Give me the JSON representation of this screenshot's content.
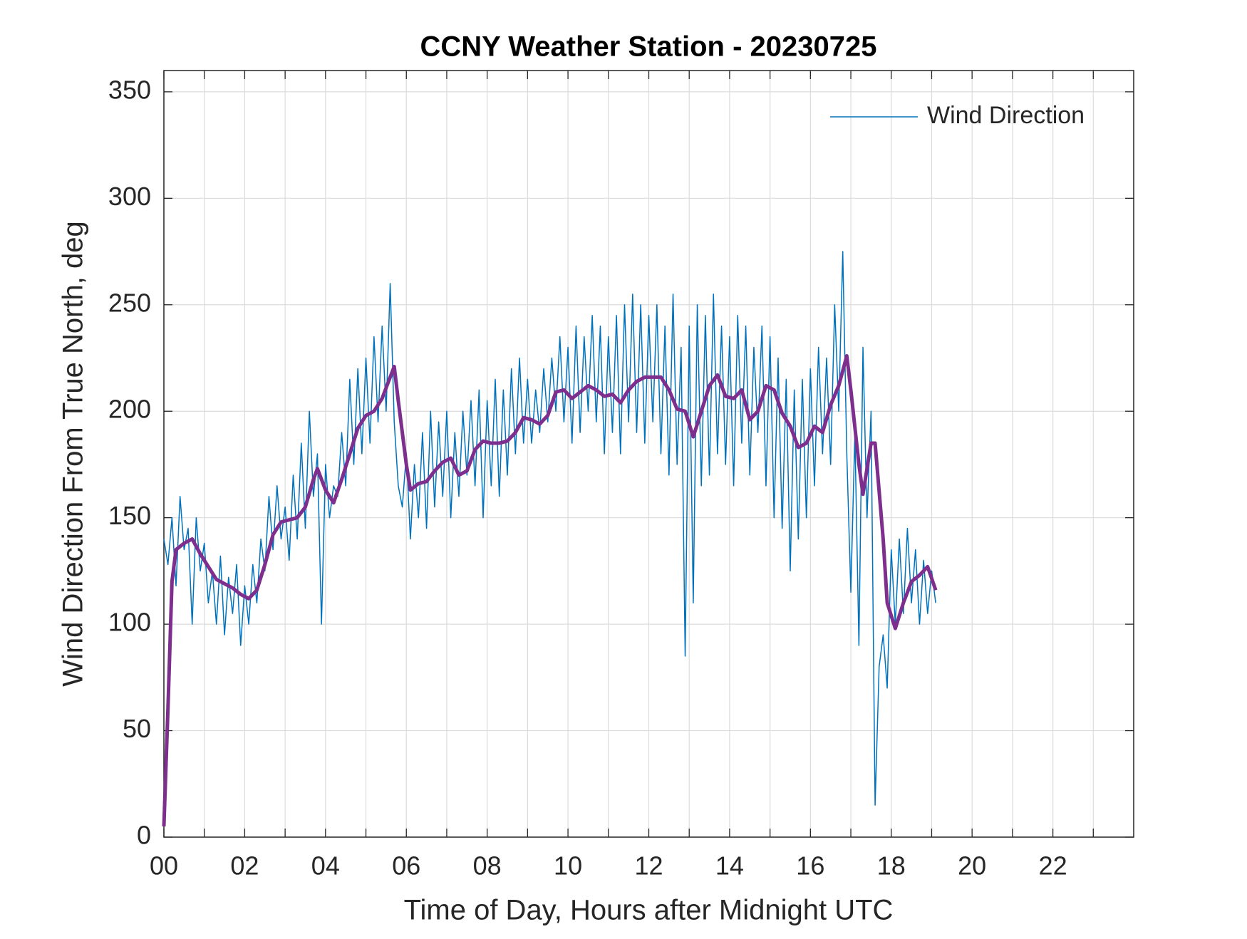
{
  "chart_data": {
    "type": "line",
    "title": "CCNY Weather Station - 20230725",
    "x_label": "Time of Day, Hours after Midnight UTC",
    "y_label": "Wind Direction From True North, deg",
    "xlim": [
      0,
      24
    ],
    "xticks": [
      {
        "value": 0,
        "label": "00"
      },
      {
        "value": 2,
        "label": "02"
      },
      {
        "value": 4,
        "label": "04"
      },
      {
        "value": 6,
        "label": "06"
      },
      {
        "value": 8,
        "label": "08"
      },
      {
        "value": 10,
        "label": "10"
      },
      {
        "value": 12,
        "label": "12"
      },
      {
        "value": 14,
        "label": "14"
      },
      {
        "value": 16,
        "label": "16"
      },
      {
        "value": 18,
        "label": "18"
      },
      {
        "value": 20,
        "label": "20"
      },
      {
        "value": 22,
        "label": "22"
      }
    ],
    "xminorticks": [
      1,
      3,
      5,
      7,
      9,
      11,
      13,
      15,
      17,
      19,
      21,
      23
    ],
    "ylim": [
      0,
      360
    ],
    "yticks": [
      0,
      50,
      100,
      150,
      200,
      250,
      300,
      350
    ],
    "grid": true,
    "legend": "upper right",
    "series": [
      {
        "name": "Wind Direction",
        "color": "#0072bd",
        "width": 1.5,
        "x": [
          0,
          0.1,
          0.2,
          0.3,
          0.4,
          0.5,
          0.6,
          0.7,
          0.8,
          0.9,
          1,
          1.1,
          1.2,
          1.3,
          1.4,
          1.5,
          1.6,
          1.7,
          1.8,
          1.9,
          2,
          2.1,
          2.2,
          2.3,
          2.4,
          2.5,
          2.6,
          2.7,
          2.8,
          2.9,
          3,
          3.1,
          3.2,
          3.3,
          3.4,
          3.5,
          3.6,
          3.7,
          3.8,
          3.9,
          4,
          4.1,
          4.2,
          4.3,
          4.4,
          4.5,
          4.6,
          4.7,
          4.8,
          4.9,
          5,
          5.1,
          5.2,
          5.3,
          5.4,
          5.5,
          5.6,
          5.7,
          5.8,
          5.9,
          6,
          6.1,
          6.2,
          6.3,
          6.4,
          6.5,
          6.6,
          6.7,
          6.8,
          6.9,
          7,
          7.1,
          7.2,
          7.3,
          7.4,
          7.5,
          7.6,
          7.7,
          7.8,
          7.9,
          8,
          8.1,
          8.2,
          8.3,
          8.4,
          8.5,
          8.6,
          8.7,
          8.8,
          8.9,
          9,
          9.1,
          9.2,
          9.3,
          9.4,
          9.5,
          9.6,
          9.7,
          9.8,
          9.9,
          10,
          10.1,
          10.2,
          10.3,
          10.4,
          10.5,
          10.6,
          10.7,
          10.8,
          10.9,
          11,
          11.1,
          11.2,
          11.3,
          11.4,
          11.5,
          11.6,
          11.7,
          11.8,
          11.9,
          12,
          12.1,
          12.2,
          12.3,
          12.4,
          12.5,
          12.6,
          12.7,
          12.8,
          12.9,
          13,
          13.1,
          13.2,
          13.3,
          13.4,
          13.5,
          13.6,
          13.7,
          13.8,
          13.9,
          14,
          14.1,
          14.2,
          14.3,
          14.4,
          14.5,
          14.6,
          14.7,
          14.8,
          14.9,
          15,
          15.1,
          15.2,
          15.3,
          15.4,
          15.5,
          15.6,
          15.7,
          15.8,
          15.9,
          16,
          16.1,
          16.2,
          16.3,
          16.4,
          16.5,
          16.6,
          16.7,
          16.8,
          16.9,
          17,
          17.1,
          17.2,
          17.3,
          17.4,
          17.5,
          17.6,
          17.7,
          17.8,
          17.9,
          18,
          18.1,
          18.2,
          18.3,
          18.4,
          18.5,
          18.6,
          18.7,
          18.8,
          18.9,
          19,
          19.1
        ],
        "values": [
          140,
          128,
          150,
          118,
          160,
          135,
          145,
          100,
          150,
          125,
          138,
          110,
          125,
          100,
          132,
          95,
          122,
          105,
          128,
          90,
          118,
          100,
          128,
          110,
          140,
          125,
          160,
          135,
          165,
          140,
          155,
          130,
          170,
          140,
          185,
          145,
          200,
          160,
          180,
          100,
          175,
          150,
          165,
          160,
          190,
          165,
          215,
          175,
          220,
          180,
          225,
          185,
          235,
          195,
          240,
          200,
          260,
          195,
          165,
          155,
          180,
          140,
          175,
          150,
          190,
          145,
          200,
          155,
          195,
          160,
          200,
          150,
          190,
          160,
          200,
          170,
          205,
          165,
          210,
          150,
          205,
          165,
          215,
          160,
          210,
          170,
          220,
          180,
          225,
          185,
          215,
          185,
          210,
          190,
          220,
          195,
          225,
          200,
          235,
          195,
          230,
          185,
          240,
          190,
          235,
          200,
          245,
          195,
          240,
          180,
          235,
          190,
          245,
          180,
          250,
          195,
          255,
          190,
          250,
          185,
          245,
          195,
          250,
          180,
          240,
          170,
          255,
          175,
          230,
          85,
          240,
          110,
          250,
          165,
          245,
          170,
          255,
          180,
          240,
          175,
          235,
          165,
          245,
          185,
          240,
          170,
          230,
          190,
          240,
          165,
          235,
          150,
          225,
          145,
          215,
          125,
          210,
          140,
          215,
          150,
          220,
          165,
          230,
          180,
          225,
          175,
          250,
          200,
          275,
          180,
          115,
          190,
          90,
          230,
          150,
          200,
          15,
          80,
          95,
          70,
          135,
          100,
          140,
          105,
          145,
          110,
          135,
          100,
          130,
          105,
          125,
          110
        ]
      },
      {
        "color": "#7e2f8e",
        "width": 5,
        "x": [
          0,
          0.1,
          0.2,
          0.3,
          0.5,
          0.7,
          0.9,
          1.1,
          1.3,
          1.5,
          1.7,
          1.9,
          2.1,
          2.3,
          2.5,
          2.7,
          2.9,
          3.1,
          3.3,
          3.5,
          3.7,
          3.8,
          4,
          4.2,
          4.4,
          4.6,
          4.8,
          5,
          5.2,
          5.4,
          5.6,
          5.7,
          5.8,
          6,
          6.1,
          6.3,
          6.5,
          6.7,
          6.9,
          7.1,
          7.3,
          7.5,
          7.7,
          7.9,
          8.1,
          8.3,
          8.5,
          8.7,
          8.9,
          9.1,
          9.3,
          9.5,
          9.7,
          9.9,
          10.1,
          10.3,
          10.5,
          10.7,
          10.9,
          11.1,
          11.3,
          11.5,
          11.7,
          11.9,
          12.1,
          12.3,
          12.5,
          12.7,
          12.9,
          13.1,
          13.3,
          13.5,
          13.7,
          13.9,
          14.1,
          14.3,
          14.5,
          14.7,
          14.9,
          15.1,
          15.3,
          15.5,
          15.7,
          15.9,
          16.1,
          16.3,
          16.5,
          16.7,
          16.9,
          17,
          17.2,
          17.3,
          17.5,
          17.6,
          17.8,
          17.9,
          18.1,
          18.3,
          18.5,
          18.7,
          18.9,
          19.1
        ],
        "values": [
          5,
          60,
          120,
          135,
          138,
          140,
          133,
          127,
          121,
          119,
          117,
          114,
          112,
          116,
          128,
          142,
          148,
          149,
          150,
          155,
          168,
          173,
          163,
          157,
          168,
          180,
          192,
          198,
          200,
          206,
          216,
          221,
          205,
          175,
          163,
          166,
          167,
          172,
          176,
          178,
          170,
          172,
          182,
          186,
          185,
          185,
          186,
          190,
          197,
          196,
          194,
          198,
          209,
          210,
          206,
          209,
          212,
          210,
          207,
          208,
          204,
          210,
          214,
          216,
          216,
          216,
          210,
          201,
          200,
          188,
          200,
          212,
          217,
          207,
          206,
          210,
          196,
          200,
          212,
          210,
          199,
          193,
          183,
          185,
          193,
          190,
          203,
          212,
          226,
          210,
          175,
          161,
          185,
          185,
          140,
          110,
          98,
          110,
          120,
          123,
          127,
          116
        ]
      }
    ]
  }
}
